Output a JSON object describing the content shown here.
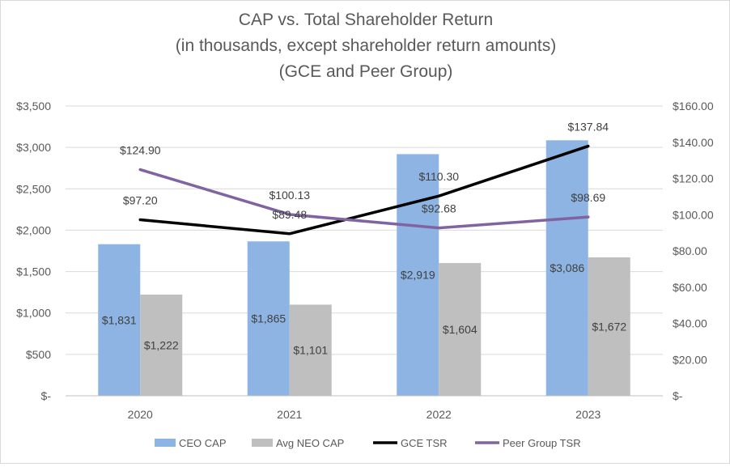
{
  "chart_data": {
    "type": "bar",
    "title": [
      "CAP vs. Total Shareholder Return",
      "(in thousands, except shareholder return amounts)",
      "(GCE and Peer Group)"
    ],
    "categories": [
      "2020",
      "2021",
      "2022",
      "2023"
    ],
    "y_left": {
      "ylim": [
        0,
        3500
      ],
      "ticks": [
        0,
        500,
        1000,
        1500,
        2000,
        2500,
        3000,
        3500
      ],
      "tick_labels": [
        "$-",
        "$500",
        "$1,000",
        "$1,500",
        "$2,000",
        "$2,500",
        "$3,000",
        "$3,500"
      ]
    },
    "y_right": {
      "ylim": [
        0,
        160
      ],
      "ticks": [
        0,
        20,
        40,
        60,
        80,
        100,
        120,
        140,
        160
      ],
      "tick_labels": [
        "$-",
        "$20.00",
        "$40.00",
        "$60.00",
        "$80.00",
        "$100.00",
        "$120.00",
        "$140.00",
        "$160.00"
      ]
    },
    "grid": true,
    "legend_position": "bottom",
    "series": [
      {
        "name": "CEO CAP",
        "type": "bar",
        "axis": "left",
        "color": "#8eb4e3",
        "values": [
          1831,
          1865,
          2919,
          3086
        ],
        "labels": [
          "$1,831",
          "$1,865",
          "$2,919",
          "$3,086"
        ]
      },
      {
        "name": "Avg NEO CAP",
        "type": "bar",
        "axis": "left",
        "color": "#bfbfbf",
        "values": [
          1222,
          1101,
          1604,
          1672
        ],
        "labels": [
          "$1,222",
          "$1,101",
          "$1,604",
          "$1,672"
        ]
      },
      {
        "name": "GCE TSR",
        "type": "line",
        "axis": "right",
        "color": "#000000",
        "values": [
          97.2,
          89.48,
          110.3,
          137.84
        ],
        "labels": [
          "$97.20",
          "$89.48",
          "$110.30",
          "$137.84"
        ]
      },
      {
        "name": "Peer Group TSR",
        "type": "line",
        "axis": "right",
        "color": "#8064a2",
        "values": [
          124.9,
          100.13,
          92.68,
          98.69
        ],
        "labels": [
          "$124.90",
          "$100.13",
          "$92.68",
          "$98.69"
        ]
      }
    ]
  }
}
